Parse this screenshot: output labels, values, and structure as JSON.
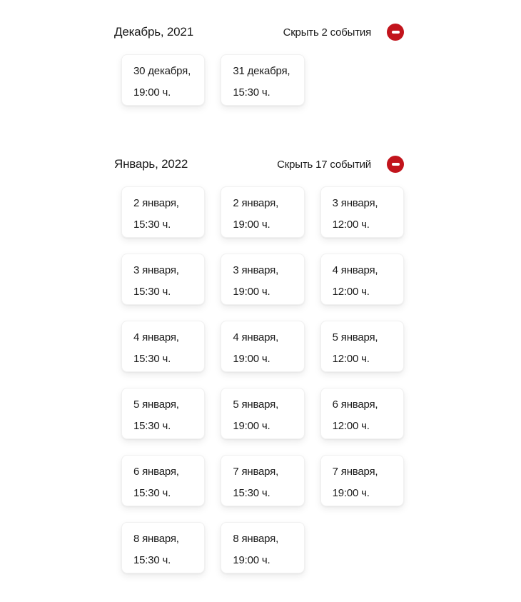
{
  "colors": {
    "accent": "#c2141c",
    "text": "#1b1b1b",
    "card_background": "#ffffff"
  },
  "sections": [
    {
      "id": "december-2021",
      "title": "Декабрь, 2021",
      "hide_label": "Скрыть 2 события",
      "toggle_icon": "minus-icon",
      "events": [
        {
          "date": "30 декабря,",
          "time": "19:00 ч."
        },
        {
          "date": "31 декабря,",
          "time": "15:30 ч."
        }
      ]
    },
    {
      "id": "january-2022",
      "title": "Январь, 2022",
      "hide_label": "Скрыть 17 событий",
      "toggle_icon": "minus-icon",
      "events": [
        {
          "date": "2 января,",
          "time": "15:30 ч."
        },
        {
          "date": "2 января,",
          "time": "19:00 ч."
        },
        {
          "date": "3 января,",
          "time": "12:00 ч."
        },
        {
          "date": "3 января,",
          "time": "15:30 ч."
        },
        {
          "date": "3 января,",
          "time": "19:00 ч."
        },
        {
          "date": "4 января,",
          "time": "12:00 ч."
        },
        {
          "date": "4 января,",
          "time": "15:30 ч."
        },
        {
          "date": "4 января,",
          "time": "19:00 ч."
        },
        {
          "date": "5 января,",
          "time": "12:00 ч."
        },
        {
          "date": "5 января,",
          "time": "15:30 ч."
        },
        {
          "date": "5 января,",
          "time": "19:00 ч."
        },
        {
          "date": "6 января,",
          "time": "12:00 ч."
        },
        {
          "date": "6 января,",
          "time": "15:30 ч."
        },
        {
          "date": "7 января,",
          "time": "15:30 ч."
        },
        {
          "date": "7 января,",
          "time": "19:00 ч."
        },
        {
          "date": "8 января,",
          "time": "15:30 ч."
        },
        {
          "date": "8 января,",
          "time": "19:00 ч."
        }
      ]
    }
  ]
}
